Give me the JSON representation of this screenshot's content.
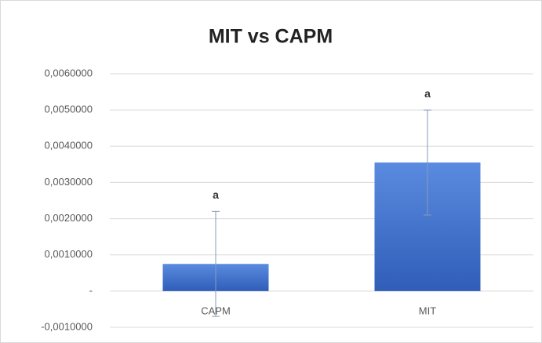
{
  "chart_data": {
    "type": "bar",
    "title": "MIT vs CAPM",
    "categories": [
      "CAPM",
      "MIT"
    ],
    "values": [
      0.00075,
      0.00355
    ],
    "errors": [
      0.00145,
      0.00145
    ],
    "annotations": [
      "a",
      "a"
    ],
    "color": "#4472c4",
    "ylim": [
      -0.001,
      0.006
    ],
    "yticks": [
      {
        "value": -0.001,
        "label": "-0,0010000"
      },
      {
        "value": 0,
        "label": "-"
      },
      {
        "value": 0.001,
        "label": "0,0010000"
      },
      {
        "value": 0.002,
        "label": "0,0020000"
      },
      {
        "value": 0.003,
        "label": "0,0030000"
      },
      {
        "value": 0.004,
        "label": "0,0040000"
      },
      {
        "value": 0.005,
        "label": "0,0050000"
      },
      {
        "value": 0.006,
        "label": "0,0060000"
      }
    ],
    "grid": true
  }
}
